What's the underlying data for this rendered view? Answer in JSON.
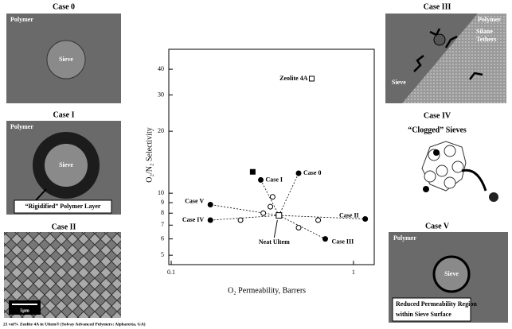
{
  "panels": {
    "case0": {
      "title": "Case 0",
      "polymer": "Polymer",
      "sieve": "Sieve"
    },
    "case1": {
      "title": "Case I",
      "polymer": "Polymer",
      "sieve": "Sieve",
      "note": "“Rigidified” Polymer Layer"
    },
    "case2": {
      "title": "Case II",
      "scale": "5μm",
      "caption": "21 vol% Zeolite 4A in Ultem® (Solvay Advanced Polymers: Alpharetta, GA)"
    },
    "case3": {
      "title": "Case III",
      "polymer": "Polymer",
      "tethers": [
        "Silane",
        "Tethers"
      ],
      "sieve": "Sieve"
    },
    "case4": {
      "title": "Case IV",
      "note": "“Clogged” Sieves"
    },
    "case5": {
      "title": "Case V",
      "polymer": "Polymer",
      "sieve": "Sieve",
      "note": [
        "Reduced Permeability Region",
        "within Sieve Surface"
      ]
    }
  },
  "chart_data": {
    "type": "scatter",
    "xlabel": "O₂ Permeability, Barrers",
    "ylabel": "O₂/N₂ Selectivity",
    "log_x": true,
    "log_y": true,
    "xlim": [
      0.097,
      1.3
    ],
    "ylim": [
      4.5,
      50
    ],
    "xticks": [
      0.1,
      1
    ],
    "yticks": [
      5,
      6,
      7,
      8,
      9,
      10,
      20,
      30,
      40
    ],
    "color": "#000",
    "neat": {
      "label": "Neat Ultem",
      "x": 0.39,
      "y": 7.8
    },
    "zeolite": {
      "label": "Zeolite 4A",
      "x": 0.59,
      "y": 36
    },
    "points": [
      {
        "label": "Case 0",
        "x": 0.5,
        "y": 12.5
      },
      {
        "label": "Case I",
        "x": 0.31,
        "y": 11.6
      },
      {
        "label": "Case V",
        "x": 0.164,
        "y": 8.8
      },
      {
        "label": "Case IV",
        "x": 0.164,
        "y": 7.4
      },
      {
        "label": "Case II",
        "x": 1.16,
        "y": 7.5
      },
      {
        "label": "Case III",
        "x": 0.7,
        "y": 6.0
      }
    ],
    "square": {
      "x": 0.28,
      "y": 12.7
    },
    "open_points": {
      "x": [
        0.36,
        0.35,
        0.32,
        0.24,
        0.64,
        0.5
      ],
      "y": [
        9.6,
        8.6,
        8.0,
        7.4,
        7.4,
        6.8
      ]
    }
  }
}
